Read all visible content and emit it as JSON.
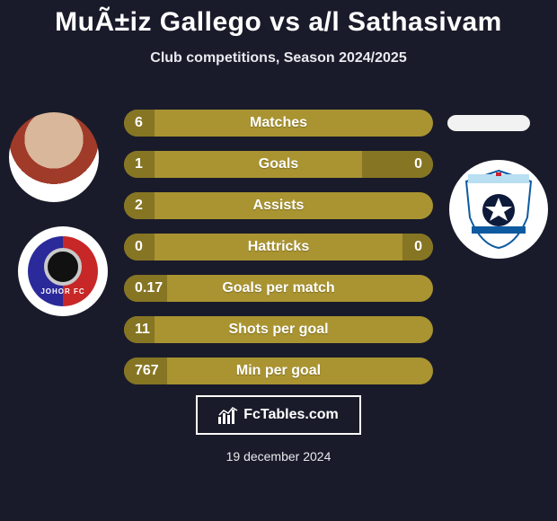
{
  "title": "MuÃ±iz Gallego vs a/l Sathasivam",
  "subtitle": "Club competitions, Season 2024/2025",
  "date": "19 december 2024",
  "footer_brand": "FcTables.com",
  "colors": {
    "background": "#1a1b2a",
    "row_base": "#a99431",
    "row_fill": "#867523",
    "text": "#ffffff"
  },
  "left_club_label": "JOHOR FC",
  "rows": [
    {
      "label": "Matches",
      "left_val": "6",
      "right_val": "",
      "left_pct": 10,
      "right_pct": 0
    },
    {
      "label": "Goals",
      "left_val": "1",
      "right_val": "0",
      "left_pct": 10,
      "right_pct": 23
    },
    {
      "label": "Assists",
      "left_val": "2",
      "right_val": "",
      "left_pct": 10,
      "right_pct": 0
    },
    {
      "label": "Hattricks",
      "left_val": "0",
      "right_val": "0",
      "left_pct": 10,
      "right_pct": 10
    },
    {
      "label": "Goals per match",
      "left_val": "0.17",
      "right_val": "",
      "left_pct": 14,
      "right_pct": 0
    },
    {
      "label": "Shots per goal",
      "left_val": "11",
      "right_val": "",
      "left_pct": 10,
      "right_pct": 0
    },
    {
      "label": "Min per goal",
      "left_val": "767",
      "right_val": "",
      "left_pct": 14,
      "right_pct": 0
    }
  ]
}
